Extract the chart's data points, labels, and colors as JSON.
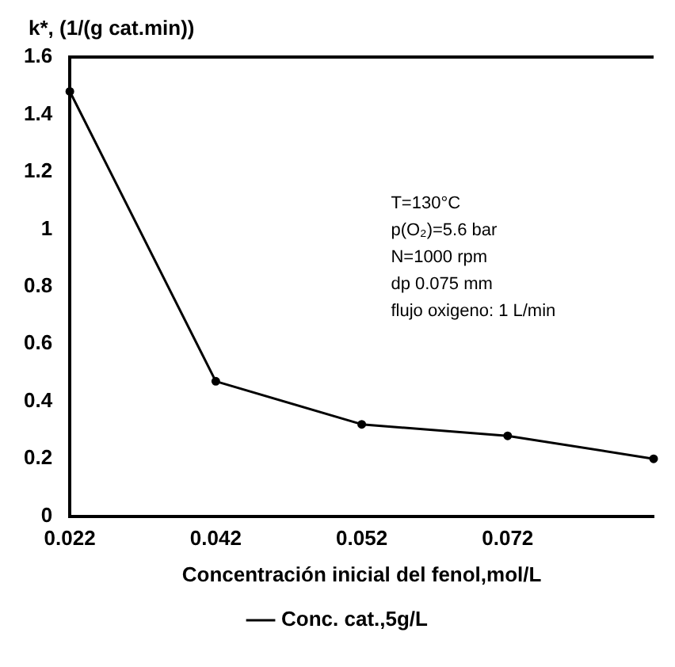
{
  "chart_data": {
    "type": "line",
    "ylabel": "k*, (1/(g cat.min))",
    "xlabel": "Concentración inicial del fenol,mol/L",
    "categories": [
      "0.022",
      "0.042",
      "0.052",
      "0.072",
      null
    ],
    "series": [
      {
        "name": "Conc. cat.,5g/L",
        "color": "#000000",
        "values": [
          1.48,
          0.47,
          0.32,
          0.28,
          0.2
        ]
      }
    ],
    "ylim": [
      0,
      1.6
    ],
    "yticks": [
      0,
      0.2,
      0.4,
      0.6,
      0.8,
      1,
      1.2,
      1.4,
      1.6
    ],
    "annotations": [
      "T=130°C",
      "p(O₂)=5.6 bar",
      "N=1000 rpm",
      "dp 0.075 mm",
      "flujo oxigeno: 1 L/min"
    ],
    "grid": false,
    "legend": "bottom",
    "marker": "circle",
    "line_style": "solid"
  }
}
